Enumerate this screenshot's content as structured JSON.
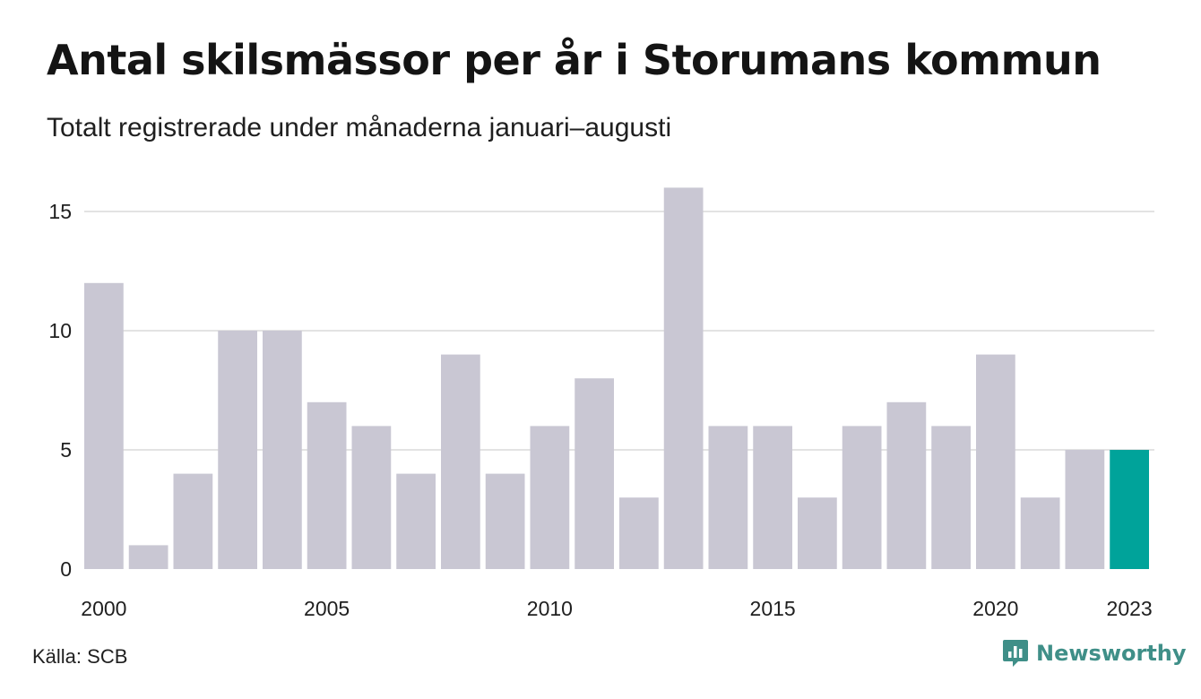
{
  "header": {
    "title": "Antal skilsmässor per år i Storumans kommun",
    "subtitle": "Totalt registrerade under månaderna januari–augusti"
  },
  "footer": {
    "source": "Källa: SCB",
    "brand": "Newsworthy",
    "brand_icon": "newsworthy-logo-icon"
  },
  "colors": {
    "bar": "#c9c7d3",
    "highlight": "#00a39a",
    "grid": "#e3e3e3",
    "brand": "#3f8f88"
  },
  "chart_data": {
    "type": "bar",
    "title": "Antal skilsmässor per år i Storumans kommun",
    "subtitle": "Totalt registrerade under månaderna januari–augusti",
    "xlabel": "",
    "ylabel": "",
    "categories": [
      "2000",
      "2001",
      "2002",
      "2003",
      "2004",
      "2005",
      "2006",
      "2007",
      "2008",
      "2009",
      "2010",
      "2011",
      "2012",
      "2013",
      "2014",
      "2015",
      "2016",
      "2017",
      "2018",
      "2019",
      "2020",
      "2021",
      "2022",
      "2023"
    ],
    "values": [
      12,
      1,
      4,
      10,
      10,
      7,
      6,
      4,
      9,
      4,
      6,
      8,
      3,
      16,
      6,
      6,
      3,
      6,
      7,
      6,
      9,
      3,
      5,
      5
    ],
    "highlight": "2023",
    "x_tick_labels": [
      "2000",
      "2005",
      "2010",
      "2015",
      "2020",
      "2023"
    ],
    "y_ticks": [
      0,
      5,
      10,
      15
    ],
    "ylim": [
      0,
      16
    ],
    "grid": true,
    "legend": "none"
  }
}
